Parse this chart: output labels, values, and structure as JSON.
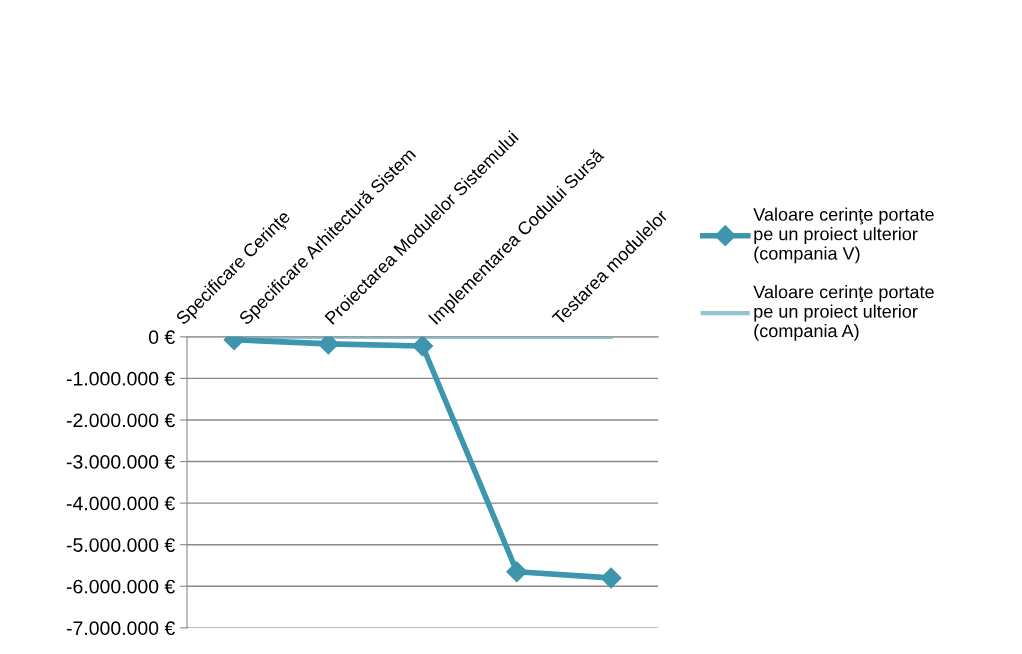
{
  "chart_data": {
    "type": "line",
    "categories": [
      "Specificare Cerinţe",
      "Specificare Arhitectură Sistem",
      "Proiectarea Modulelor Sistemului",
      "Implementarea Codului Sursă",
      "Testarea modulelor"
    ],
    "series": [
      {
        "name": "Valoare cerinţe portate pe un proiect ulterior (compania V)",
        "color": "#3d96ae",
        "marker": "diamond",
        "values": [
          -70000,
          -170000,
          -220000,
          -5650000,
          -5800000
        ]
      },
      {
        "name": "Valoare cerinţe portate pe un proiect ulterior (compania A)",
        "color": "#93c4d6",
        "marker": "none",
        "values": [
          0,
          0,
          0,
          0,
          0
        ]
      }
    ],
    "ylim": [
      -7000000,
      0
    ],
    "yticks": [
      {
        "value": 0,
        "label": "0 €"
      },
      {
        "value": -1000000,
        "label": "-1.000.000 €"
      },
      {
        "value": -2000000,
        "label": "-2.000.000 €"
      },
      {
        "value": -3000000,
        "label": "-3.000.000 €"
      },
      {
        "value": -4000000,
        "label": "-4.000.000 €"
      },
      {
        "value": -5000000,
        "label": "-5.000.000 €"
      },
      {
        "value": -6000000,
        "label": "-6.000.000 €"
      },
      {
        "value": -7000000,
        "label": "-7.000.000 €"
      }
    ],
    "grid": "y",
    "legend": "right",
    "line_style": "solid"
  }
}
